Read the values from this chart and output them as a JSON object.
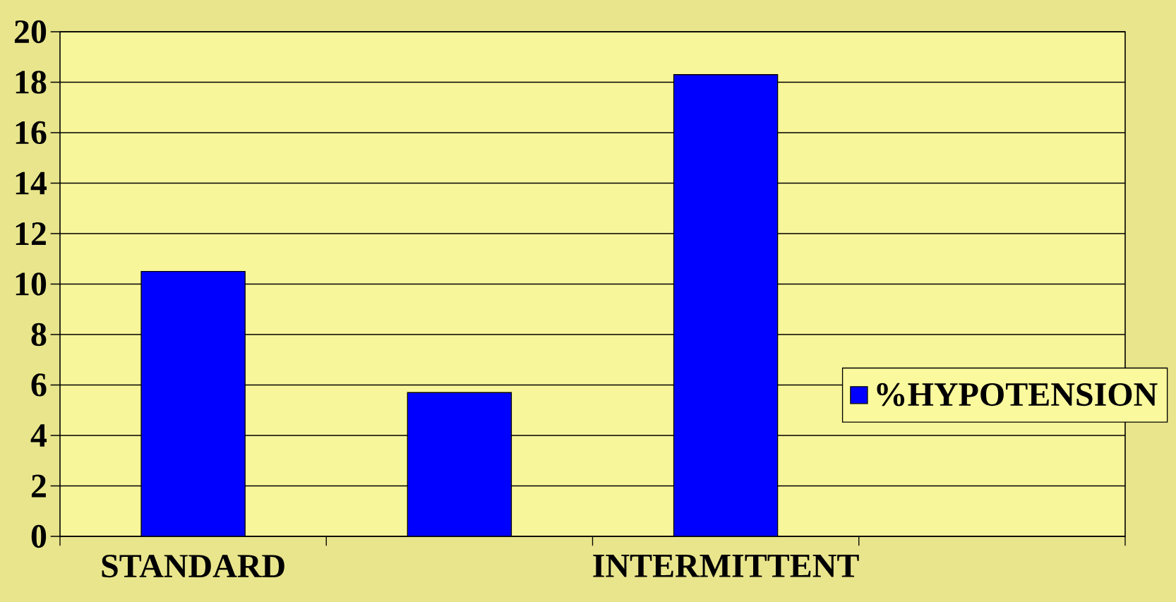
{
  "chart_data": {
    "type": "bar",
    "categories": [
      "STANDARD",
      null,
      "INTERMITTENT",
      null
    ],
    "series": [
      {
        "name": "%HYPOTENSION",
        "color": "#0000ff",
        "values": [
          10.5,
          5.7,
          18.3,
          null
        ]
      }
    ],
    "ylim": [
      0,
      20
    ],
    "yticks": [
      0,
      2,
      4,
      6,
      8,
      10,
      12,
      14,
      16,
      18,
      20
    ],
    "grid": "y",
    "legend": "right"
  }
}
